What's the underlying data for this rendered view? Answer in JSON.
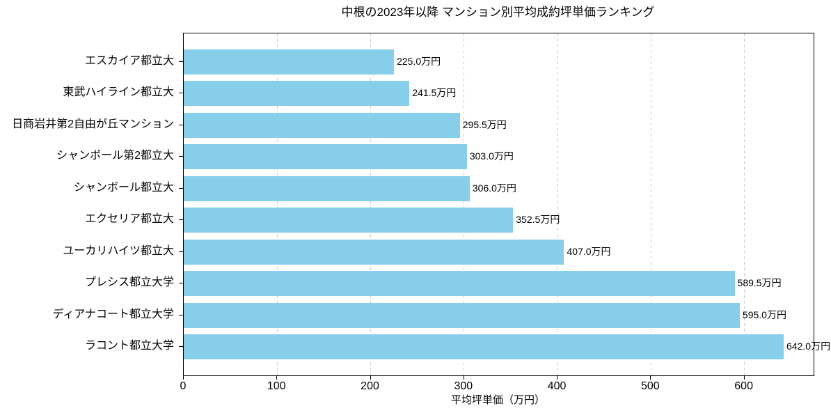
{
  "chart_data": {
    "type": "bar",
    "orientation": "horizontal",
    "title": "中根の2023年以降 マンション別平均成約坪単価ランキング",
    "xlabel": "平均坪単価（万円）",
    "ylabel": "",
    "categories": [
      "エスカイア都立大",
      "東武ハイライン都立大",
      "日商岩井第2自由が丘マンション",
      "シャンボール第2都立大",
      "シャンボール都立大",
      "エクセリア都立大",
      "ユーカリハイツ都立大",
      "プレシス都立大学",
      "ディアナコート都立大学",
      "ラコント都立大学"
    ],
    "values": [
      225.0,
      241.5,
      295.5,
      303.0,
      306.0,
      352.5,
      407.0,
      589.5,
      595.0,
      642.0
    ],
    "value_labels": [
      "225.0万円",
      "241.5万円",
      "295.5万円",
      "303.0万円",
      "306.0万円",
      "352.5万円",
      "407.0万円",
      "589.5万円",
      "595.0万円",
      "642.0万円"
    ],
    "unit_suffix": "万円",
    "xticks": [
      0,
      100,
      200,
      300,
      400,
      500,
      600
    ],
    "xlim": [
      0,
      674
    ],
    "grid": "vertical-dashed",
    "legend": "none",
    "bar_color": "#87CEEB",
    "grid_color": "#c9c9c9",
    "axis_color": "#000000",
    "background_color": "#ffffff"
  }
}
